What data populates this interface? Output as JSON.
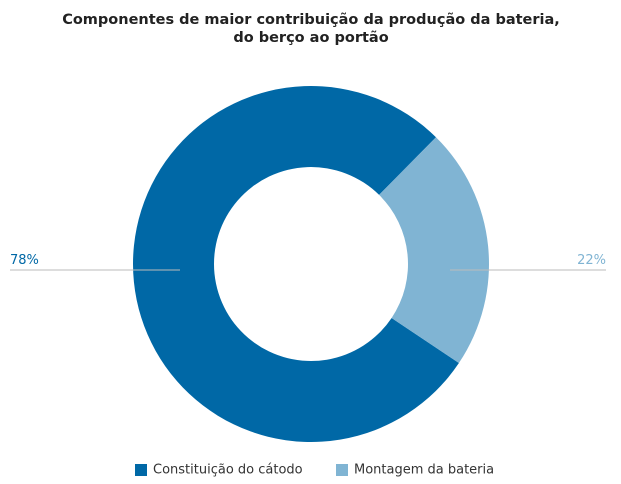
{
  "chart_data": {
    "type": "donut",
    "title": [
      "Componentes de maior contribuição da produção da bateria,",
      "do berço ao portão"
    ],
    "categories": [
      "Constituição do cátodo",
      "Montagem da bateria"
    ],
    "values": [
      78,
      22
    ],
    "value_labels": [
      "78%",
      "22%"
    ],
    "colors": [
      "#0068a6",
      "#80b4d3"
    ],
    "legend": "bottom"
  }
}
